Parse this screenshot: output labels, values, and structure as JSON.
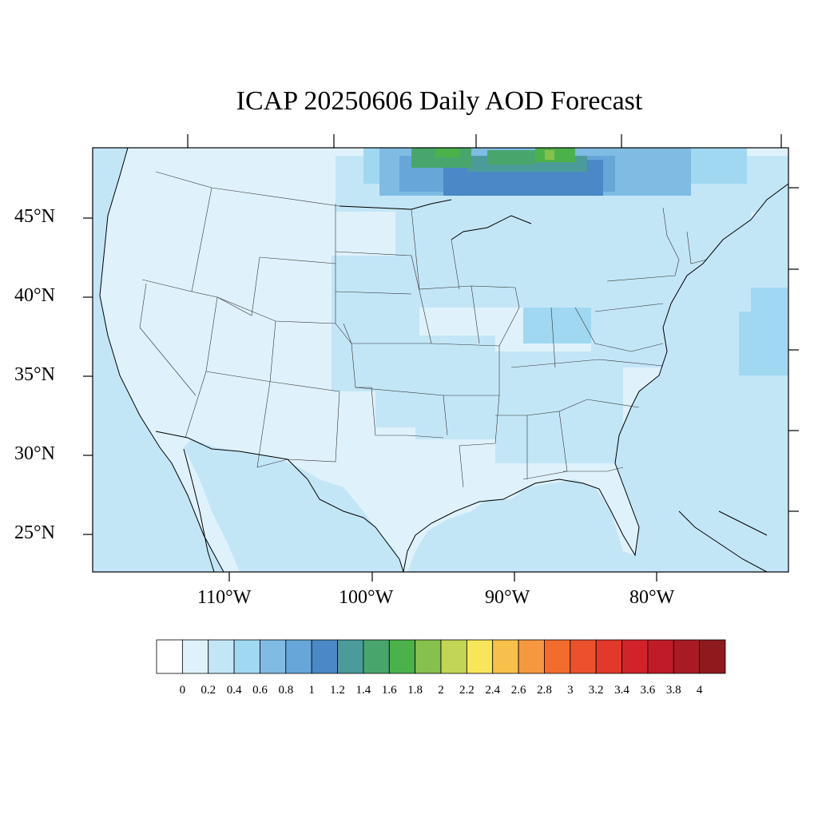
{
  "title": "ICAP 20250606 Daily AOD Forecast",
  "lat_labels": [
    "45°N",
    "40°N",
    "35°N",
    "30°N",
    "25°N"
  ],
  "lon_labels": [
    "110°W",
    "100°W",
    "90°W",
    "80°W"
  ],
  "map": {
    "region": "Contiguous United States",
    "ocean_color": "#c3e6f7",
    "land_low_color": "#dff2fb",
    "aod_features": [
      {
        "description": "Smoke plume over southern Canada / upper Great Lakes",
        "max_aod": 1.8
      },
      {
        "description": "Moderate AOD over central Plains",
        "max_aod": 0.6
      },
      {
        "description": "Moderate AOD over Ohio Valley and Northeast",
        "max_aod": 0.6
      }
    ]
  },
  "colorbar": {
    "colors": [
      "#ffffff",
      "#dff2fb",
      "#c3e6f7",
      "#a0d8f2",
      "#80bbe4",
      "#67a6d8",
      "#4a88c7",
      "#4b9b9b",
      "#48a66c",
      "#4bb24a",
      "#86c04d",
      "#c2d555",
      "#f7e65a",
      "#f7c04a",
      "#f69840",
      "#f26c2e",
      "#eb512c",
      "#e3392a",
      "#d2232b",
      "#c01c27",
      "#a91b24",
      "#8f1a1e"
    ],
    "labels": [
      "0",
      "0.2",
      "0.4",
      "0.6",
      "0.8",
      "1",
      "1.2",
      "1.4",
      "1.6",
      "1.8",
      "2",
      "2.2",
      "2.4",
      "2.6",
      "2.8",
      "3",
      "3.2",
      "3.4",
      "3.6",
      "3.8",
      "4"
    ]
  }
}
